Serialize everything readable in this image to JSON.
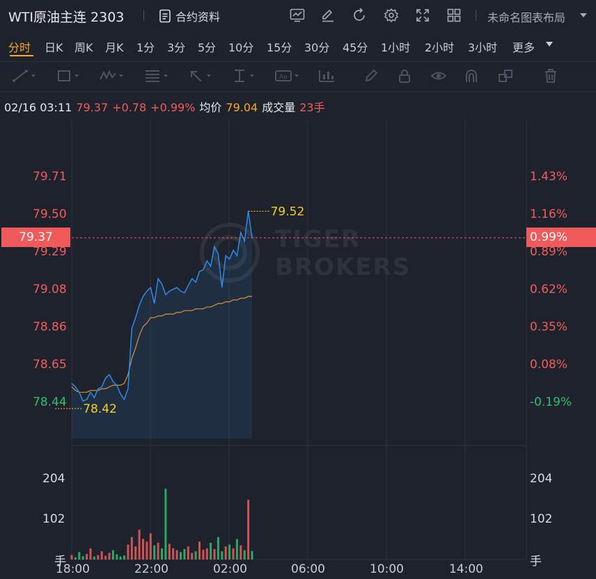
{
  "header": {
    "title": "WTI原油主连 2303",
    "contract_label": "合约资料",
    "layout_name": "未命名图表布局"
  },
  "periods": [
    "分时",
    "日K",
    "周K",
    "月K",
    "1分",
    "3分",
    "5分",
    "10分",
    "15分",
    "30分",
    "45分",
    "1小时",
    "2小时",
    "3小时",
    "更多"
  ],
  "active_period": "分时",
  "info": {
    "datetime": "02/16 03:11",
    "price": "79.37",
    "change": "+0.78",
    "change_pct": "+0.99%",
    "avg_label": "均价",
    "avg_value": "79.04",
    "volume_label": "成交量",
    "volume_value": "23手"
  },
  "axes": {
    "price_ticks": [
      "79.71",
      "79.50",
      "79.29",
      "79.08",
      "78.86",
      "78.65",
      "78.44"
    ],
    "pct_ticks": [
      "1.43%",
      "1.16%",
      "0.89%",
      "0.62%",
      "0.35%",
      "0.08%",
      "-0.19%"
    ],
    "current_price": "79.37",
    "current_pct": "0.99%",
    "high_label": "79.52",
    "low_label": "78.42",
    "time_ticks": [
      "18:00",
      "22:00",
      "02:00",
      "06:00",
      "10:00",
      "14:00"
    ],
    "volume_ticks": [
      "204",
      "102"
    ],
    "volume_unit": "手"
  },
  "colors": {
    "up": "#f25c5c",
    "down": "#2fbf71",
    "price_line": "#2f8ae8",
    "avg_line": "#d4953a",
    "accent": "#f7a824",
    "highlow_label": "#f5d020"
  },
  "chart_data": {
    "type": "line",
    "title": "",
    "xlabel": "",
    "ylabel": "",
    "ylim": [
      78.44,
      79.71
    ],
    "series": [
      {
        "values": [
          78.55,
          78.53,
          78.5,
          78.45,
          78.46,
          78.5,
          78.47,
          78.52,
          78.53,
          78.58,
          78.6,
          78.56,
          78.54,
          78.49,
          78.46,
          78.52,
          78.86,
          78.92,
          78.99,
          79.04,
          79.07,
          79.09,
          79.0,
          79.14,
          79.11,
          79.05,
          79.07,
          79.08,
          79.09,
          79.07,
          79.06,
          79.1,
          79.14,
          79.12,
          79.18,
          79.19,
          79.24,
          79.21,
          79.32,
          79.28,
          79.09,
          79.27,
          79.25,
          79.3,
          79.27,
          79.4,
          79.35,
          79.52,
          79.37
        ]
      },
      {
        "values": [
          78.53,
          78.51,
          78.5,
          78.5,
          78.5,
          78.51,
          78.51,
          78.51,
          78.52,
          78.52,
          78.53,
          78.54,
          78.54,
          78.54,
          78.55,
          78.6,
          78.69,
          78.75,
          78.82,
          78.87,
          78.89,
          78.92,
          78.92,
          78.93,
          78.93,
          78.94,
          78.94,
          78.94,
          78.95,
          78.95,
          78.96,
          78.96,
          78.96,
          78.97,
          78.97,
          78.97,
          78.98,
          78.98,
          78.99,
          79.0,
          79.0,
          79.01,
          79.01,
          79.02,
          79.02,
          79.03,
          79.03,
          79.04,
          79.04
        ]
      }
    ],
    "volume": [
      12,
      6,
      20,
      9,
      15,
      30,
      8,
      12,
      22,
      10,
      18,
      25,
      14,
      8,
      11,
      40,
      60,
      35,
      80,
      55,
      48,
      70,
      38,
      45,
      30,
      190,
      42,
      30,
      25,
      20,
      28,
      35,
      18,
      22,
      48,
      26,
      30,
      45,
      28,
      60,
      22,
      35,
      40,
      30,
      55,
      38,
      25,
      160,
      23
    ],
    "volume_ylim": [
      0,
      306
    ]
  }
}
